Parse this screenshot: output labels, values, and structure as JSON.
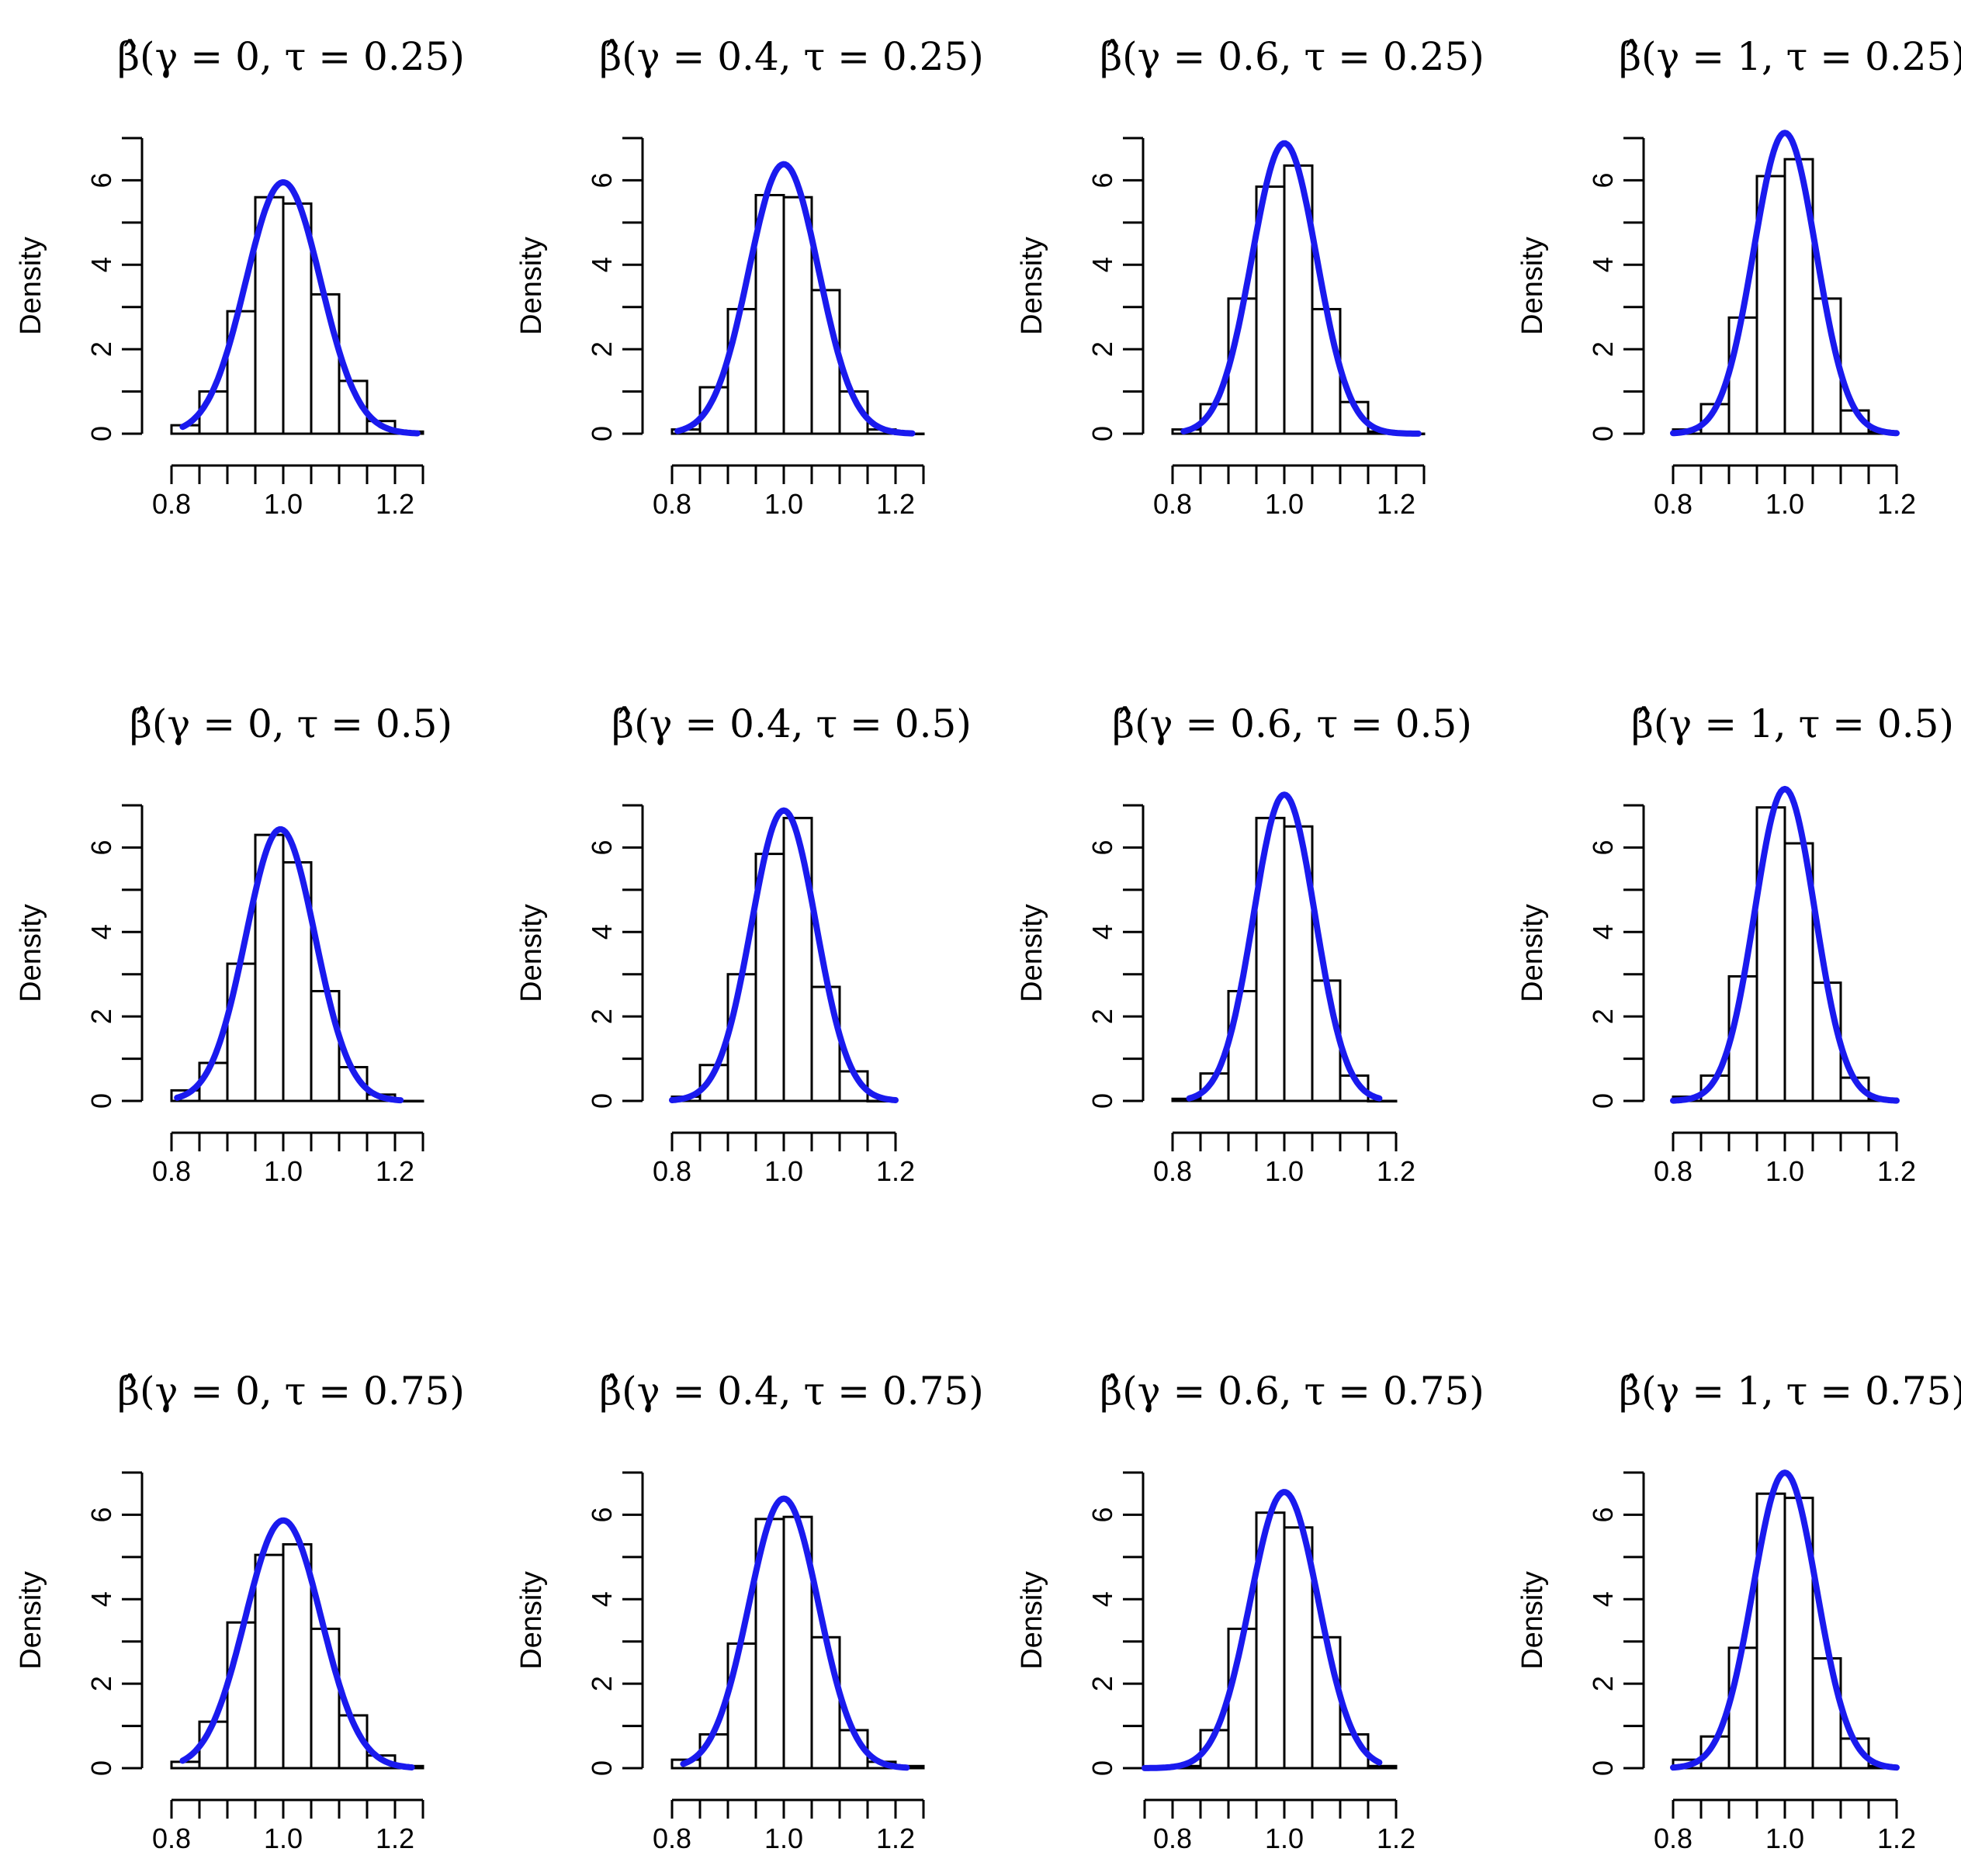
{
  "colors": {
    "curve": "#1a1aee",
    "bars": "#000000",
    "background": "#ffffff"
  },
  "chart_data": [
    {
      "type": "bar",
      "title": "β̂(γ = 0, τ = 0.25)",
      "ylabel": "Density",
      "xlabel": "",
      "xlim": [
        0.8,
        1.25
      ],
      "ylim": [
        0,
        7
      ],
      "xticks": [
        "0.8",
        "1.0",
        "1.2"
      ],
      "yticks": [
        "0",
        "2",
        "4",
        "6"
      ],
      "bin_width": 0.05,
      "bin_edges": [
        0.8,
        0.85,
        0.9,
        0.95,
        1.0,
        1.05,
        1.1,
        1.15,
        1.2,
        1.25
      ],
      "values": [
        0.2,
        1.0,
        2.9,
        5.6,
        5.45,
        3.3,
        1.25,
        0.3,
        0.05
      ],
      "curve": {
        "type": "normal_density",
        "mean": 1.0,
        "sd": 0.067,
        "x_range": [
          0.82,
          1.24
        ]
      }
    },
    {
      "type": "bar",
      "title": "β̂(γ = 0.4, τ = 0.25)",
      "ylabel": "Density",
      "xlabel": "",
      "xlim": [
        0.8,
        1.25
      ],
      "ylim": [
        0,
        7
      ],
      "xticks": [
        "0.8",
        "1.0",
        "1.2"
      ],
      "yticks": [
        "0",
        "2",
        "4",
        "6"
      ],
      "bin_width": 0.05,
      "bin_edges": [
        0.8,
        0.85,
        0.9,
        0.95,
        1.0,
        1.05,
        1.1,
        1.15,
        1.2,
        1.25
      ],
      "values": [
        0.1,
        1.1,
        2.95,
        5.65,
        5.6,
        3.4,
        1.0,
        0.1,
        0.0
      ],
      "curve": {
        "type": "normal_density",
        "mean": 1.0,
        "sd": 0.0625,
        "x_range": [
          0.81,
          1.23
        ]
      }
    },
    {
      "type": "bar",
      "title": "β̂(γ = 0.6, τ = 0.25)",
      "ylabel": "Density",
      "xlabel": "",
      "xlim": [
        0.8,
        1.25
      ],
      "ylim": [
        0,
        7
      ],
      "xticks": [
        "0.8",
        "1.0",
        "1.2"
      ],
      "yticks": [
        "0",
        "2",
        "4",
        "6"
      ],
      "bin_width": 0.05,
      "bin_edges": [
        0.8,
        0.85,
        0.9,
        0.95,
        1.0,
        1.05,
        1.1,
        1.15,
        1.2,
        1.25
      ],
      "values": [
        0.1,
        0.7,
        3.2,
        5.85,
        6.35,
        2.95,
        0.75,
        0.05,
        0.0
      ],
      "curve": {
        "type": "normal_density",
        "mean": 1.0,
        "sd": 0.058,
        "x_range": [
          0.82,
          1.24
        ]
      }
    },
    {
      "type": "bar",
      "title": "β̂(γ = 1, τ = 0.25)",
      "ylabel": "Density",
      "xlabel": "",
      "xlim": [
        0.8,
        1.2
      ],
      "ylim": [
        0,
        7
      ],
      "xticks": [
        "0.8",
        "1.0",
        "1.2"
      ],
      "yticks": [
        "0",
        "2",
        "4",
        "6"
      ],
      "bin_width": 0.05,
      "bin_edges": [
        0.8,
        0.85,
        0.9,
        0.95,
        1.0,
        1.05,
        1.1,
        1.15,
        1.2
      ],
      "values": [
        0.1,
        0.7,
        2.75,
        6.1,
        6.5,
        3.2,
        0.55,
        0.05
      ],
      "curve": {
        "type": "normal_density",
        "mean": 1.0,
        "sd": 0.056,
        "x_range": [
          0.8,
          1.2
        ]
      }
    },
    {
      "type": "bar",
      "title": "β̂(γ = 0, τ = 0.5)",
      "ylabel": "Density",
      "xlabel": "",
      "xlim": [
        0.8,
        1.25
      ],
      "ylim": [
        0,
        7
      ],
      "xticks": [
        "0.8",
        "1.0",
        "1.2"
      ],
      "yticks": [
        "0",
        "2",
        "4",
        "6"
      ],
      "bin_width": 0.05,
      "bin_edges": [
        0.8,
        0.85,
        0.9,
        0.95,
        1.0,
        1.05,
        1.1,
        1.15,
        1.2,
        1.25
      ],
      "values": [
        0.25,
        0.9,
        3.25,
        6.3,
        5.65,
        2.6,
        0.8,
        0.15,
        0.0
      ],
      "curve": {
        "type": "normal_density",
        "mean": 0.995,
        "sd": 0.062,
        "x_range": [
          0.81,
          1.21
        ]
      }
    },
    {
      "type": "bar",
      "title": "β̂(γ = 0.4, τ = 0.5)",
      "ylabel": "Density",
      "xlabel": "",
      "xlim": [
        0.8,
        1.2
      ],
      "ylim": [
        0,
        7
      ],
      "xticks": [
        "0.8",
        "1.0",
        "1.2"
      ],
      "yticks": [
        "0",
        "2",
        "4",
        "6"
      ],
      "bin_width": 0.05,
      "bin_edges": [
        0.8,
        0.85,
        0.9,
        0.95,
        1.0,
        1.05,
        1.1,
        1.15,
        1.2
      ],
      "values": [
        0.1,
        0.85,
        3.0,
        5.85,
        6.7,
        2.7,
        0.7,
        0.0
      ],
      "curve": {
        "type": "normal_density",
        "mean": 1.0,
        "sd": 0.058,
        "x_range": [
          0.8,
          1.2
        ]
      }
    },
    {
      "type": "bar",
      "title": "β̂(γ = 0.6, τ = 0.5)",
      "ylabel": "Density",
      "xlabel": "",
      "xlim": [
        0.8,
        1.2
      ],
      "ylim": [
        0,
        7
      ],
      "xticks": [
        "0.8",
        "1.0",
        "1.2"
      ],
      "yticks": [
        "0",
        "2",
        "4",
        "6"
      ],
      "bin_width": 0.05,
      "bin_edges": [
        0.8,
        0.85,
        0.9,
        0.95,
        1.0,
        1.05,
        1.1,
        1.15,
        1.2
      ],
      "values": [
        0.05,
        0.65,
        2.6,
        6.7,
        6.5,
        2.85,
        0.6,
        0.0
      ],
      "curve": {
        "type": "normal_density",
        "mean": 1.0,
        "sd": 0.055,
        "x_range": [
          0.83,
          1.17
        ]
      }
    },
    {
      "type": "bar",
      "title": "β̂(γ = 1, τ = 0.5)",
      "ylabel": "Density",
      "xlabel": "",
      "xlim": [
        0.8,
        1.2
      ],
      "ylim": [
        0,
        7
      ],
      "xticks": [
        "0.8",
        "1.0",
        "1.2"
      ],
      "yticks": [
        "0",
        "2",
        "4",
        "6"
      ],
      "bin_width": 0.05,
      "bin_edges": [
        0.8,
        0.85,
        0.9,
        0.95,
        1.0,
        1.05,
        1.1,
        1.15,
        1.2
      ],
      "values": [
        0.1,
        0.6,
        2.95,
        6.95,
        6.1,
        2.8,
        0.55,
        0.05
      ],
      "curve": {
        "type": "normal_density",
        "mean": 1.0,
        "sd": 0.054,
        "x_range": [
          0.8,
          1.2
        ]
      }
    },
    {
      "type": "bar",
      "title": "β̂(γ = 0, τ = 0.75)",
      "ylabel": "Density",
      "xlabel": "",
      "xlim": [
        0.8,
        1.25
      ],
      "ylim": [
        0,
        7
      ],
      "xticks": [
        "0.8",
        "1.0",
        "1.2"
      ],
      "yticks": [
        "0",
        "2",
        "4",
        "6"
      ],
      "bin_width": 0.05,
      "bin_edges": [
        0.8,
        0.85,
        0.9,
        0.95,
        1.0,
        1.05,
        1.1,
        1.15,
        1.2,
        1.25
      ],
      "values": [
        0.15,
        1.1,
        3.45,
        5.05,
        5.3,
        3.3,
        1.25,
        0.3,
        0.05
      ],
      "curve": {
        "type": "normal_density",
        "mean": 1.0,
        "sd": 0.068,
        "x_range": [
          0.82,
          1.23
        ]
      }
    },
    {
      "type": "bar",
      "title": "β̂(γ = 0.4, τ = 0.75)",
      "ylabel": "Density",
      "xlabel": "",
      "xlim": [
        0.8,
        1.25
      ],
      "ylim": [
        0,
        7
      ],
      "xticks": [
        "0.8",
        "1.0",
        "1.2"
      ],
      "yticks": [
        "0",
        "2",
        "4",
        "6"
      ],
      "bin_width": 0.05,
      "bin_edges": [
        0.8,
        0.85,
        0.9,
        0.95,
        1.0,
        1.05,
        1.1,
        1.15,
        1.2,
        1.25
      ],
      "values": [
        0.2,
        0.8,
        2.95,
        5.9,
        5.95,
        3.1,
        0.9,
        0.15,
        0.05
      ],
      "curve": {
        "type": "normal_density",
        "mean": 1.0,
        "sd": 0.0625,
        "x_range": [
          0.82,
          1.22
        ]
      }
    },
    {
      "type": "bar",
      "title": "β̂(γ = 0.6, τ = 0.75)",
      "ylabel": "Density",
      "xlabel": "",
      "xlim": [
        0.75,
        1.2
      ],
      "ylim": [
        0,
        7
      ],
      "xticks": [
        "0.8",
        "1.0",
        "1.2"
      ],
      "yticks": [
        "0",
        "2",
        "4",
        "6"
      ],
      "bin_width": 0.05,
      "bin_edges": [
        0.75,
        0.8,
        0.85,
        0.9,
        0.95,
        1.0,
        1.05,
        1.1,
        1.15,
        1.2
      ],
      "values": [
        0.0,
        0.05,
        0.9,
        3.3,
        6.05,
        5.7,
        3.1,
        0.8,
        0.05
      ],
      "curve": {
        "type": "normal_density",
        "mean": 1.0,
        "sd": 0.061,
        "x_range": [
          0.75,
          1.17
        ]
      }
    },
    {
      "type": "bar",
      "title": "β̂(γ = 1, τ = 0.75)",
      "ylabel": "Density",
      "xlabel": "",
      "xlim": [
        0.8,
        1.2
      ],
      "ylim": [
        0,
        7
      ],
      "xticks": [
        "0.8",
        "1.0",
        "1.2"
      ],
      "yticks": [
        "0",
        "2",
        "4",
        "6"
      ],
      "bin_width": 0.05,
      "bin_edges": [
        0.8,
        0.85,
        0.9,
        0.95,
        1.0,
        1.05,
        1.1,
        1.15,
        1.2
      ],
      "values": [
        0.2,
        0.75,
        2.85,
        6.5,
        6.4,
        2.6,
        0.7,
        0.05
      ],
      "curve": {
        "type": "normal_density",
        "mean": 1.0,
        "sd": 0.057,
        "x_range": [
          0.8,
          1.2
        ]
      }
    }
  ]
}
